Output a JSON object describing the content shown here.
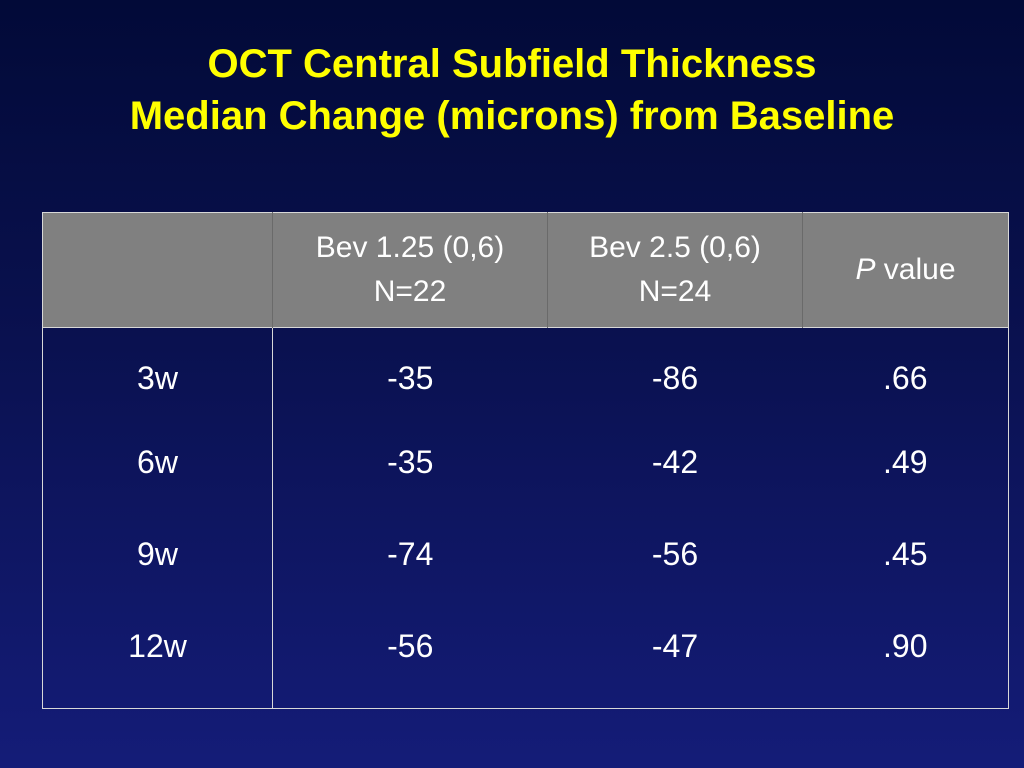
{
  "slide": {
    "title_line1": "OCT Central Subfield Thickness",
    "title_line2": "Median Change (microns) from Baseline"
  },
  "table": {
    "headers": [
      {
        "line1": "",
        "line2": ""
      },
      {
        "line1": "Bev 1.25 (0,6)",
        "line2": "N=22"
      },
      {
        "line1": "Bev 2.5 (0,6)",
        "line2": "N=24"
      },
      {
        "italic": "P",
        "rest": " value"
      }
    ],
    "rows": [
      {
        "label": "3w",
        "bev125": "-35",
        "bev25": "-86",
        "p": ".66"
      },
      {
        "label": "6w",
        "bev125": "-35",
        "bev25": "-42",
        "p": ".49"
      },
      {
        "label": "9w",
        "bev125": "-74",
        "bev25": "-56",
        "p": ".45"
      },
      {
        "label": "12w",
        "bev125": "-56",
        "bev25": "-47",
        "p": ".90"
      }
    ]
  },
  "colors": {
    "title": "#ffff00",
    "header_bg": "#808080",
    "background_top": "#020a38",
    "background_bottom": "#141c78",
    "text": "#ffffff",
    "border": "#d8d8d8"
  }
}
